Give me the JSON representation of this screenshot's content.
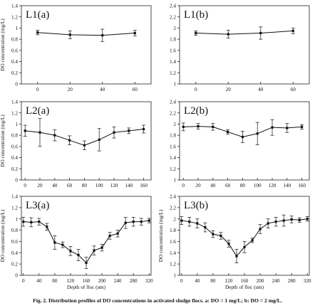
{
  "caption": "Fig. 2. Distribution profiles of DO concentrations in activated sludge flocs. a: DO = 1 mg/L; b: DO = 2 mg/L.",
  "chart_data": [
    {
      "type": "line",
      "panel": "L1(a)",
      "title": "L1(a)",
      "ylabel": "DO concentration (mg/L)",
      "xlabel": "",
      "ylim": [
        0,
        1.4
      ],
      "yticks": [
        0,
        0.2,
        0.4,
        0.6,
        0.8,
        1.0,
        1.2,
        1.4
      ],
      "xlim": [
        -10,
        70
      ],
      "xticks": [
        0,
        20,
        40,
        60
      ],
      "x": [
        0,
        20,
        40,
        60
      ],
      "y": [
        0.92,
        0.88,
        0.87,
        0.91
      ],
      "err": [
        0.04,
        0.07,
        0.11,
        0.05
      ]
    },
    {
      "type": "line",
      "panel": "L1(b)",
      "title": "L1(b)",
      "ylabel": "",
      "xlabel": "",
      "ylim": [
        1.0,
        2.4
      ],
      "yticks": [
        1.0,
        1.2,
        1.4,
        1.6,
        1.8,
        2.0,
        2.2,
        2.4
      ],
      "xlim": [
        -10,
        70
      ],
      "xticks": [
        0,
        20,
        40,
        60
      ],
      "x": [
        0,
        20,
        40,
        60
      ],
      "y": [
        1.91,
        1.89,
        1.91,
        1.95
      ],
      "err": [
        0.04,
        0.07,
        0.11,
        0.05
      ]
    },
    {
      "type": "line",
      "panel": "L2(a)",
      "title": "L2(a)",
      "ylabel": "DO concentration (mg/L)",
      "xlabel": "",
      "ylim": [
        0,
        1.4
      ],
      "yticks": [
        0,
        0.2,
        0.4,
        0.6,
        0.8,
        1.0,
        1.2,
        1.4
      ],
      "xlim": [
        -5,
        170
      ],
      "xticks": [
        0,
        20,
        40,
        60,
        80,
        100,
        120,
        140,
        160
      ],
      "x": [
        0,
        20,
        40,
        60,
        80,
        100,
        120,
        140,
        160
      ],
      "y": [
        0.88,
        0.85,
        0.8,
        0.71,
        0.62,
        0.72,
        0.85,
        0.88,
        0.91
      ],
      "err": [
        0.1,
        0.25,
        0.1,
        0.08,
        0.08,
        0.2,
        0.1,
        0.05,
        0.07
      ]
    },
    {
      "type": "line",
      "panel": "L2(b)",
      "title": "L2(b)",
      "ylabel": "",
      "xlabel": "",
      "ylim": [
        1.0,
        2.4
      ],
      "yticks": [
        1.0,
        1.2,
        1.4,
        1.6,
        1.8,
        2.0,
        2.2,
        2.4
      ],
      "xlim": [
        -5,
        170
      ],
      "xticks": [
        0,
        20,
        40,
        60,
        80,
        100,
        120,
        140,
        160
      ],
      "x": [
        0,
        20,
        40,
        60,
        80,
        100,
        120,
        140,
        160
      ],
      "y": [
        1.95,
        1.96,
        1.95,
        1.86,
        1.77,
        1.83,
        1.94,
        1.93,
        1.95
      ],
      "err": [
        0.07,
        0.05,
        0.06,
        0.04,
        0.1,
        0.2,
        0.14,
        0.08,
        0.04
      ]
    },
    {
      "type": "line",
      "panel": "L3(a)",
      "title": "L3(a)",
      "ylabel": "DO concentration (mg/L)",
      "xlabel": "Depth of floc (um)",
      "ylim": [
        0,
        1.4
      ],
      "yticks": [
        0,
        0.2,
        0.4,
        0.6,
        0.8,
        1.0,
        1.2,
        1.4
      ],
      "xlim": [
        -5,
        325
      ],
      "xticks": [
        0,
        40,
        80,
        120,
        160,
        200,
        240,
        280,
        320
      ],
      "x": [
        0,
        20,
        40,
        60,
        80,
        100,
        120,
        140,
        160,
        180,
        200,
        220,
        240,
        260,
        280,
        300,
        320
      ],
      "y": [
        0.95,
        0.94,
        0.95,
        0.86,
        0.58,
        0.54,
        0.43,
        0.36,
        0.22,
        0.44,
        0.49,
        0.7,
        0.74,
        0.93,
        0.95,
        0.95,
        0.97
      ],
      "err": [
        0.08,
        0.08,
        0.06,
        0.06,
        0.12,
        0.05,
        0.08,
        0.1,
        0.1,
        0.08,
        0.06,
        0.06,
        0.06,
        0.1,
        0.08,
        0.06,
        0.04
      ]
    },
    {
      "type": "line",
      "panel": "L3(b)",
      "title": "L3(b)",
      "ylabel": "DO concentration (mg/L)",
      "xlabel": "Depth of floc (um)",
      "ylim": [
        1.0,
        2.4
      ],
      "yticks": [
        1.0,
        1.2,
        1.4,
        1.6,
        1.8,
        2.0,
        2.2,
        2.4
      ],
      "xlim": [
        -5,
        325
      ],
      "xticks": [
        0,
        40,
        80,
        120,
        160,
        200,
        240,
        280,
        320
      ],
      "x": [
        0,
        20,
        40,
        60,
        80,
        100,
        120,
        140,
        160,
        180,
        200,
        220,
        240,
        260,
        280,
        300,
        320
      ],
      "y": [
        1.97,
        1.95,
        1.92,
        1.85,
        1.73,
        1.7,
        1.56,
        1.34,
        1.5,
        1.62,
        1.82,
        1.92,
        1.95,
        1.97,
        1.99,
        1.98,
        2.0
      ],
      "err": [
        0.07,
        0.08,
        0.08,
        0.08,
        0.06,
        0.06,
        0.06,
        0.12,
        0.1,
        0.04,
        0.08,
        0.08,
        0.08,
        0.1,
        0.06,
        0.04,
        0.04
      ]
    }
  ]
}
